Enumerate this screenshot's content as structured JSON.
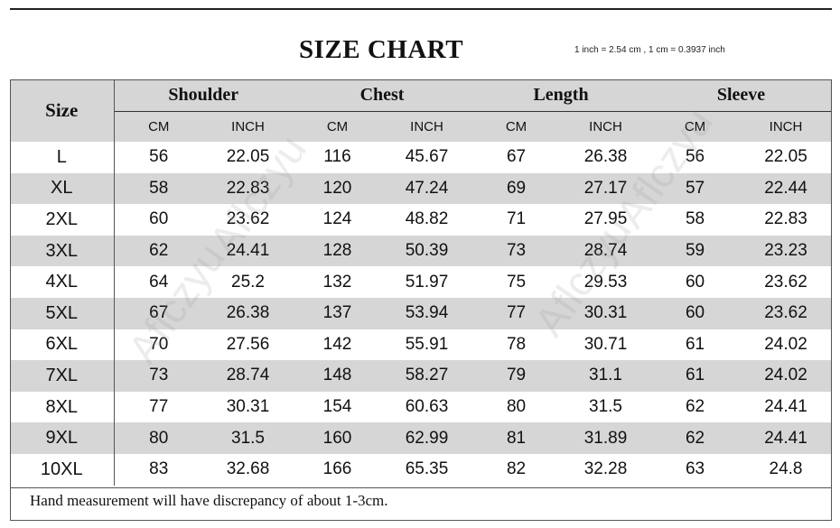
{
  "title": "SIZE CHART",
  "conversion_note": "1 inch = 2.54 cm , 1 cm = 0.3937 inch",
  "headers": {
    "size": "Size",
    "groups": [
      "Shoulder",
      "Chest",
      "Length",
      "Sleeve"
    ],
    "units": [
      "CM",
      "INCH",
      "CM",
      "INCH",
      "CM",
      "INCH",
      "CM",
      "INCH"
    ]
  },
  "rows": [
    {
      "size": "L",
      "values": [
        "56",
        "22.05",
        "116",
        "45.67",
        "67",
        "26.38",
        "56",
        "22.05"
      ]
    },
    {
      "size": "XL",
      "values": [
        "58",
        "22.83",
        "120",
        "47.24",
        "69",
        "27.17",
        "57",
        "22.44"
      ]
    },
    {
      "size": "2XL",
      "values": [
        "60",
        "23.62",
        "124",
        "48.82",
        "71",
        "27.95",
        "58",
        "22.83"
      ]
    },
    {
      "size": "3XL",
      "values": [
        "62",
        "24.41",
        "128",
        "50.39",
        "73",
        "28.74",
        "59",
        "23.23"
      ]
    },
    {
      "size": "4XL",
      "values": [
        "64",
        "25.2",
        "132",
        "51.97",
        "75",
        "29.53",
        "60",
        "23.62"
      ]
    },
    {
      "size": "5XL",
      "values": [
        "67",
        "26.38",
        "137",
        "53.94",
        "77",
        "30.31",
        "60",
        "23.62"
      ]
    },
    {
      "size": "6XL",
      "values": [
        "70",
        "27.56",
        "142",
        "55.91",
        "78",
        "30.71",
        "61",
        "24.02"
      ]
    },
    {
      "size": "7XL",
      "values": [
        "73",
        "28.74",
        "148",
        "58.27",
        "79",
        "31.1",
        "61",
        "24.02"
      ]
    },
    {
      "size": "8XL",
      "values": [
        "77",
        "30.31",
        "154",
        "60.63",
        "80",
        "31.5",
        "62",
        "24.41"
      ]
    },
    {
      "size": "9XL",
      "values": [
        "80",
        "31.5",
        "160",
        "62.99",
        "81",
        "31.89",
        "62",
        "24.41"
      ]
    },
    {
      "size": "10XL",
      "values": [
        "83",
        "32.68",
        "166",
        "65.35",
        "82",
        "32.28",
        "63",
        "24.8"
      ]
    }
  ],
  "footer_note": "Hand measurement will have discrepancy of about 1-3cm.",
  "watermark": "Aflczyu",
  "colors": {
    "stripe": "#d6d6d6",
    "border": "#555555"
  }
}
